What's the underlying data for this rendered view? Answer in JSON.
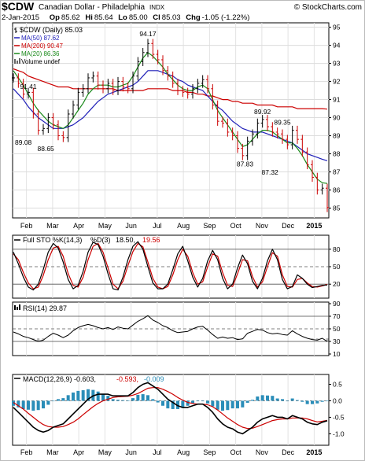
{
  "header": {
    "symbol": "$CDW",
    "name": "Canadian Dollar - Philadelphia",
    "exchange": "INDX",
    "brand": "© StockCharts.com",
    "date": "2-Jan-2015",
    "op_label": "Op",
    "open": "85.62",
    "hi_label": "Hi",
    "high": "85.64",
    "lo_label": "Lo",
    "low": "85.00",
    "cl_label": "Cl",
    "close": "85.03",
    "chg_label": "Chg",
    "change": "-1.05 (-1.22%)"
  },
  "months": [
    "Feb",
    "Mar",
    "Apr",
    "May",
    "Jun",
    "Jul",
    "Aug",
    "Sep",
    "Oct",
    "Nov",
    "Dec",
    "2015"
  ],
  "colors": {
    "price": "#000000",
    "ma50": "#1f1fb8",
    "ma200": "#cc0000",
    "ma20": "#1a8a1a",
    "down": "#cc0000",
    "up": "#000000",
    "macd_hist": "#2a8db8",
    "rsi_fill": "#2a8a2a"
  },
  "chart_data": [
    {
      "type": "line",
      "panel": "price",
      "legend": [
        {
          "key": "price",
          "text": "$CDW (Daily) 85.03",
          "icon": "bar-icon"
        },
        {
          "key": "ma50",
          "text": "MA(50) 87.62"
        },
        {
          "key": "ma200",
          "text": "MA(200) 90.47"
        },
        {
          "key": "ma20",
          "text": "MA(20) 86.36"
        },
        {
          "key": "volume",
          "text": "Volume undef",
          "icon": "volume-icon"
        }
      ],
      "ylim": [
        84.5,
        95.2
      ],
      "yticks": [
        85,
        86,
        87,
        88,
        89,
        90,
        91,
        92,
        93,
        94,
        95
      ],
      "x": [
        0,
        4,
        8,
        12,
        16,
        20,
        24,
        28,
        32,
        36,
        40,
        44,
        48,
        52,
        56,
        60,
        64,
        68,
        72,
        76,
        80,
        84,
        88,
        92,
        96,
        100,
        104,
        108,
        112,
        116,
        120,
        124,
        128,
        132,
        136,
        140,
        144,
        148,
        152,
        156,
        160,
        164,
        168,
        172,
        176,
        180,
        184,
        188,
        192,
        196,
        200,
        204,
        208,
        212,
        216,
        220,
        224,
        228,
        232,
        236,
        240,
        244,
        248,
        252
      ],
      "close": [
        92.2,
        91.9,
        91.3,
        91.4,
        90.2,
        89.3,
        89.4,
        90.0,
        89.6,
        89.0,
        88.9,
        90.2,
        90.7,
        91.4,
        91.6,
        92.2,
        92.3,
        91.8,
        91.6,
        91.9,
        91.5,
        92.0,
        91.7,
        91.6,
        92.3,
        93.1,
        93.6,
        94.1,
        93.5,
        93.2,
        92.6,
        92.3,
        91.9,
        91.5,
        91.4,
        91.3,
        91.6,
        91.9,
        92.1,
        91.6,
        90.7,
        89.8,
        89.7,
        89.2,
        89.0,
        88.3,
        87.9,
        88.7,
        89.1,
        89.7,
        89.9,
        89.5,
        89.2,
        89.1,
        88.8,
        88.5,
        89.3,
        88.8,
        88.1,
        87.4,
        86.7,
        86.0,
        86.1,
        85.03
      ],
      "ma20": [
        92.6,
        92.2,
        91.8,
        91.3,
        90.8,
        90.4,
        90.1,
        89.8,
        89.6,
        89.5,
        89.4,
        89.6,
        90.0,
        90.4,
        90.8,
        91.3,
        91.6,
        91.8,
        91.8,
        91.8,
        91.7,
        91.7,
        91.8,
        91.9,
        92.3,
        92.8,
        93.3,
        93.6,
        93.4,
        93.1,
        92.8,
        92.4,
        92.1,
        91.8,
        91.6,
        91.5,
        91.5,
        91.7,
        91.8,
        91.6,
        91.0,
        90.4,
        90.0,
        89.6,
        89.2,
        88.8,
        88.4,
        88.5,
        88.8,
        89.1,
        89.3,
        89.3,
        89.2,
        89.0,
        88.8,
        88.6,
        88.6,
        88.3,
        87.9,
        87.4,
        87.0,
        86.6,
        86.4,
        86.36
      ],
      "ma50": [
        91.6,
        91.3,
        91.0,
        90.6,
        90.3,
        90.0,
        89.8,
        89.6,
        89.4,
        89.4,
        89.4,
        89.5,
        89.6,
        89.8,
        90.0,
        90.3,
        90.6,
        90.9,
        91.1,
        91.3,
        91.4,
        91.5,
        91.6,
        91.7,
        91.8,
        92.0,
        92.3,
        92.6,
        92.6,
        92.6,
        92.5,
        92.4,
        92.3,
        92.1,
        92.0,
        91.8,
        91.7,
        91.6,
        91.5,
        91.2,
        90.9,
        90.6,
        90.4,
        90.1,
        89.8,
        89.6,
        89.4,
        89.3,
        89.2,
        89.2,
        89.2,
        89.1,
        89.0,
        88.9,
        88.8,
        88.7,
        88.6,
        88.4,
        88.2,
        88.0,
        87.9,
        87.8,
        87.7,
        87.62
      ],
      "ma200": [
        92.7,
        92.6,
        92.5,
        92.3,
        92.2,
        92.1,
        92.0,
        91.9,
        91.8,
        91.7,
        91.7,
        91.7,
        91.6,
        91.6,
        91.6,
        91.6,
        91.6,
        91.6,
        91.6,
        91.6,
        91.6,
        91.5,
        91.5,
        91.5,
        91.5,
        91.5,
        91.5,
        91.6,
        91.6,
        91.6,
        91.6,
        91.6,
        91.5,
        91.5,
        91.5,
        91.4,
        91.4,
        91.3,
        91.3,
        91.2,
        91.2,
        91.1,
        91.0,
        91.0,
        90.9,
        90.9,
        90.8,
        90.8,
        90.8,
        90.7,
        90.7,
        90.7,
        90.7,
        90.6,
        90.6,
        90.6,
        90.6,
        90.5,
        90.5,
        90.5,
        90.5,
        90.5,
        90.5,
        90.47
      ],
      "annotations": [
        {
          "text": "91.41",
          "x": 12,
          "y": 91.6
        },
        {
          "text": "89.08",
          "x": 8,
          "y": 88.5
        },
        {
          "text": "88.65",
          "x": 26,
          "y": 88.15
        },
        {
          "text": "94.17",
          "x": 108,
          "y": 94.5
        },
        {
          "text": "89.92",
          "x": 200,
          "y": 90.2
        },
        {
          "text": "89.35",
          "x": 216,
          "y": 89.6
        },
        {
          "text": "87.83",
          "x": 186,
          "y": 87.3
        },
        {
          "text": "87.32",
          "x": 206,
          "y": 86.85
        }
      ]
    },
    {
      "type": "line",
      "panel": "sto",
      "legend": [
        {
          "key": "k",
          "text": "Full STO %K(14,3)"
        },
        {
          "key": "d",
          "text": "%D(3)"
        },
        {
          "key": "k_val",
          "text": "18.50,"
        },
        {
          "key": "d_val",
          "text": "19.56"
        }
      ],
      "ylim": [
        0,
        100
      ],
      "yticks": [
        20,
        50,
        80
      ],
      "k": [
        75,
        55,
        32,
        15,
        10,
        20,
        45,
        75,
        90,
        82,
        58,
        28,
        12,
        18,
        42,
        75,
        92,
        88,
        68,
        38,
        12,
        10,
        32,
        62,
        85,
        93,
        80,
        50,
        22,
        12,
        12,
        20,
        45,
        72,
        85,
        60,
        32,
        15,
        30,
        60,
        78,
        62,
        30,
        12,
        20,
        48,
        70,
        55,
        25,
        12,
        30,
        60,
        80,
        62,
        28,
        12,
        16,
        36,
        30,
        20,
        14,
        16,
        18,
        18.5
      ],
      "d": [
        72,
        62,
        40,
        22,
        12,
        15,
        35,
        62,
        82,
        85,
        68,
        38,
        18,
        15,
        32,
        62,
        85,
        90,
        75,
        48,
        20,
        12,
        25,
        52,
        76,
        90,
        84,
        58,
        30,
        15,
        12,
        16,
        36,
        62,
        80,
        68,
        40,
        20,
        24,
        50,
        72,
        68,
        40,
        18,
        16,
        38,
        62,
        60,
        33,
        15,
        24,
        50,
        74,
        68,
        36,
        16,
        15,
        28,
        30,
        22,
        16,
        15,
        17,
        19.56
      ]
    },
    {
      "type": "line",
      "panel": "rsi",
      "legend": [
        {
          "key": "rsi",
          "text": "RSI(14) 29.87"
        }
      ],
      "ylim": [
        10,
        90
      ],
      "yticks": [
        10,
        30,
        50,
        70,
        90
      ],
      "values": [
        45,
        42,
        38,
        36,
        33,
        30,
        32,
        38,
        43,
        40,
        36,
        40,
        47,
        52,
        55,
        57,
        55,
        52,
        50,
        52,
        49,
        53,
        51,
        50,
        56,
        62,
        66,
        71,
        64,
        60,
        55,
        52,
        47,
        44,
        45,
        46,
        50,
        53,
        54,
        48,
        41,
        35,
        37,
        35,
        36,
        33,
        34,
        43,
        46,
        49,
        48,
        44,
        42,
        43,
        41,
        40,
        47,
        42,
        38,
        35,
        33,
        32,
        35,
        29.87
      ]
    },
    {
      "type": "line",
      "panel": "macd",
      "legend": [
        {
          "key": "macd",
          "text": "MACD(12,26,9) -0.603,"
        },
        {
          "key": "signal",
          "text": "-0.593,"
        },
        {
          "key": "hist",
          "text": "-0.009"
        }
      ],
      "ylim": [
        -1.3,
        0.75
      ],
      "yticks": [
        -1.0,
        -0.5,
        0.0,
        0.5
      ],
      "macd": [
        -0.2,
        -0.35,
        -0.5,
        -0.65,
        -0.8,
        -0.9,
        -0.95,
        -0.9,
        -0.8,
        -0.75,
        -0.7,
        -0.55,
        -0.4,
        -0.25,
        -0.1,
        0.05,
        0.15,
        0.2,
        0.2,
        0.2,
        0.15,
        0.15,
        0.15,
        0.15,
        0.25,
        0.4,
        0.5,
        0.55,
        0.45,
        0.35,
        0.2,
        0.05,
        -0.05,
        -0.15,
        -0.2,
        -0.2,
        -0.15,
        -0.1,
        -0.1,
        -0.2,
        -0.35,
        -0.55,
        -0.7,
        -0.8,
        -0.85,
        -0.95,
        -1.0,
        -0.9,
        -0.8,
        -0.65,
        -0.55,
        -0.5,
        -0.45,
        -0.5,
        -0.5,
        -0.55,
        -0.45,
        -0.5,
        -0.55,
        -0.65,
        -0.7,
        -0.72,
        -0.65,
        -0.603
      ],
      "signal": [
        -0.05,
        -0.15,
        -0.25,
        -0.38,
        -0.5,
        -0.62,
        -0.72,
        -0.78,
        -0.8,
        -0.8,
        -0.78,
        -0.72,
        -0.65,
        -0.55,
        -0.42,
        -0.3,
        -0.18,
        -0.08,
        0.0,
        0.05,
        0.1,
        0.12,
        0.13,
        0.14,
        0.17,
        0.22,
        0.3,
        0.38,
        0.4,
        0.4,
        0.35,
        0.28,
        0.2,
        0.1,
        0.02,
        -0.05,
        -0.08,
        -0.1,
        -0.1,
        -0.12,
        -0.18,
        -0.28,
        -0.4,
        -0.52,
        -0.62,
        -0.72,
        -0.8,
        -0.84,
        -0.83,
        -0.78,
        -0.72,
        -0.66,
        -0.6,
        -0.57,
        -0.55,
        -0.55,
        -0.52,
        -0.52,
        -0.52,
        -0.55,
        -0.6,
        -0.64,
        -0.62,
        -0.593
      ]
    }
  ]
}
